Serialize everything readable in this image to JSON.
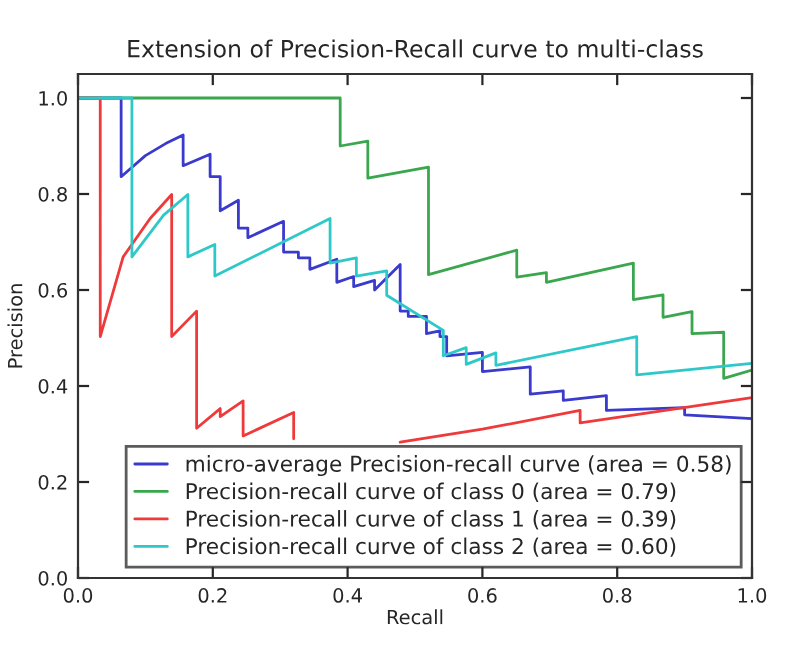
{
  "chart_data": {
    "type": "line",
    "title": "Extension of Precision-Recall curve to multi-class",
    "xlabel": "Recall",
    "ylabel": "Precision",
    "xlim": [
      0,
      1
    ],
    "ylim": [
      0,
      1.05
    ],
    "xticks": [
      {
        "value": 0,
        "label": "0.0"
      },
      0.2,
      0.4,
      0.6,
      0.8,
      {
        "value": 1,
        "label": "1.0"
      }
    ],
    "yticks": [
      {
        "value": 0,
        "label": "0.0"
      },
      0.2,
      0.4,
      0.6,
      0.8,
      {
        "value": 1,
        "label": "1.0"
      }
    ],
    "grid": false,
    "legend": "bottom right",
    "marker": "none",
    "line_style": "solid",
    "series": [
      {
        "name": "micro-average Precision-recall curve (area = 0.58)",
        "color": "#3a3acc",
        "x": [
          0,
          0.064,
          0.064,
          0.1,
          0.13,
          0.156,
          0.156,
          0.196,
          0.196,
          0.211,
          0.211,
          0.238,
          0.238,
          0.252,
          0.252,
          0.305,
          0.305,
          0.327,
          0.327,
          0.344,
          0.344,
          0.384,
          0.384,
          0.409,
          0.409,
          0.44,
          0.44,
          0.478,
          0.478,
          0.49,
          0.49,
          0.517,
          0.517,
          0.537,
          0.537,
          0.547,
          0.547,
          0.6,
          0.6,
          0.671,
          0.671,
          0.72,
          0.72,
          0.784,
          0.784,
          0.9,
          0.9,
          1.0
        ],
        "values": [
          1.0,
          1.0,
          0.836,
          0.88,
          0.905,
          0.923,
          0.859,
          0.883,
          0.836,
          0.836,
          0.765,
          0.787,
          0.729,
          0.729,
          0.709,
          0.743,
          0.679,
          0.679,
          0.667,
          0.667,
          0.643,
          0.664,
          0.616,
          0.628,
          0.607,
          0.62,
          0.6,
          0.653,
          0.556,
          0.556,
          0.545,
          0.545,
          0.509,
          0.515,
          0.503,
          0.503,
          0.463,
          0.47,
          0.43,
          0.44,
          0.383,
          0.39,
          0.37,
          0.38,
          0.349,
          0.355,
          0.34,
          0.332
        ]
      },
      {
        "name": "Precision-recall curve of class 0 (area = 0.79)",
        "color": "#3aa64e",
        "x": [
          0,
          0.389,
          0.389,
          0.43,
          0.43,
          0.52,
          0.52,
          0.651,
          0.651,
          0.695,
          0.695,
          0.824,
          0.824,
          0.868,
          0.868,
          0.911,
          0.911,
          0.958,
          0.958,
          1.0
        ],
        "values": [
          1.0,
          1.0,
          0.9,
          0.91,
          0.833,
          0.856,
          0.632,
          0.683,
          0.627,
          0.636,
          0.616,
          0.656,
          0.58,
          0.59,
          0.543,
          0.555,
          0.509,
          0.512,
          0.416,
          0.433
        ]
      },
      {
        "name": "Precision-recall curve of class 1 (area = 0.39)",
        "color": "#ee3a3a",
        "x": [
          0,
          0.033,
          0.033,
          0.067,
          0.107,
          0.139,
          0.139,
          0.176,
          0.176,
          0.211,
          0.211,
          0.245,
          0.245,
          0.32,
          0.32,
          0.4,
          0.478,
          0.6,
          0.745,
          0.745,
          1.0
        ],
        "values": [
          1.0,
          1.0,
          0.503,
          0.669,
          0.749,
          0.799,
          0.503,
          0.556,
          0.312,
          0.353,
          0.336,
          0.369,
          0.296,
          0.345,
          0.29,
          null,
          0.283,
          0.31,
          0.349,
          0.323,
          0.376
        ]
      },
      {
        "name": "Precision-recall curve of class 2 (area = 0.60)",
        "color": "#2ec8c8",
        "x": [
          0,
          0.08,
          0.08,
          0.127,
          0.163,
          0.163,
          0.203,
          0.203,
          0.374,
          0.374,
          0.413,
          0.413,
          0.458,
          0.458,
          0.542,
          0.542,
          0.576,
          0.576,
          0.62,
          0.62,
          0.829,
          0.829,
          1.0
        ],
        "values": [
          1.0,
          1.0,
          0.669,
          0.756,
          0.799,
          0.669,
          0.695,
          0.629,
          0.749,
          0.656,
          0.667,
          0.629,
          0.64,
          0.589,
          0.516,
          0.463,
          0.48,
          0.445,
          0.469,
          0.443,
          0.503,
          0.423,
          0.447
        ]
      }
    ]
  }
}
